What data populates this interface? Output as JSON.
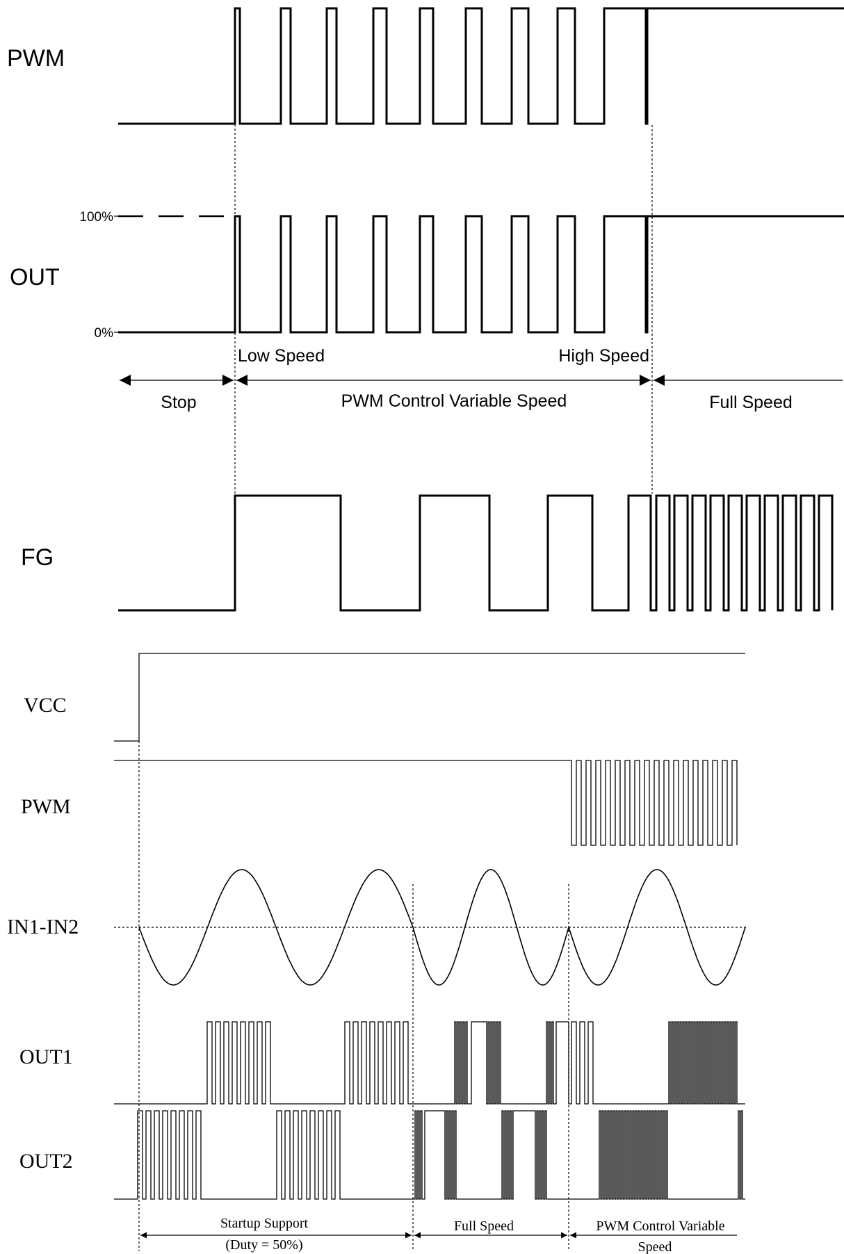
{
  "diagram_top": {
    "signals": [
      "PWM",
      "OUT",
      "FG"
    ],
    "out_levels": {
      "high": "100%",
      "low": "0%"
    },
    "annotations": {
      "low_speed": "Low Speed",
      "high_speed": "High Speed"
    },
    "phases": [
      "Stop",
      "PWM Control Variable Speed",
      "Full Speed"
    ]
  },
  "diagram_bottom": {
    "signals": [
      "VCC",
      "PWM",
      "IN1-IN2",
      "OUT1",
      "OUT2"
    ],
    "phases": {
      "startup_line1": "Startup Support",
      "startup_line2": "(Duty = 50%)",
      "full_speed": "Full Speed",
      "pwm_line1": "PWM Control Variable",
      "pwm_line2": "Speed"
    }
  }
}
